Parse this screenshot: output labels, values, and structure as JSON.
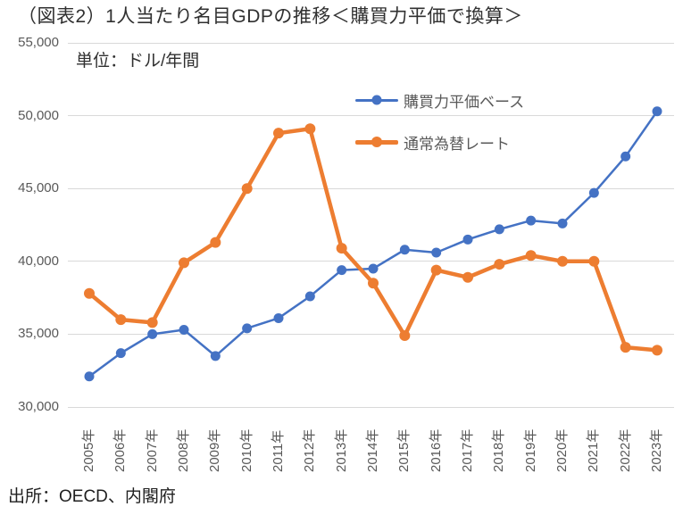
{
  "title": "（図表2）1人当たり名目GDPの推移＜購買力平価で換算＞",
  "subtitle": "単位：ドル/年間",
  "source": "出所：OECD、内閣府",
  "colors": {
    "ppp_series": "#4472C4",
    "fx_series": "#ED7D31",
    "gridline": "#D9D9D9",
    "axis_text": "#595959"
  },
  "chart_data": {
    "type": "line",
    "title": "（図表2）1人当たり名目GDPの推移＜購買力平価で換算＞",
    "subtitle": "単位：ドル/年間",
    "xlabel": "",
    "ylabel": "ドル/年間",
    "ylim": [
      30000,
      55000
    ],
    "grid": "horizontal",
    "legend_position": "top-right-inside",
    "categories": [
      "2005年",
      "2006年",
      "2007年",
      "2008年",
      "2009年",
      "2010年",
      "2011年",
      "2012年",
      "2013年",
      "2014年",
      "2015年",
      "2016年",
      "2017年",
      "2018年",
      "2019年",
      "2020年",
      "2021年",
      "2022年",
      "2023年"
    ],
    "y_ticks": {
      "values": [
        30000,
        35000,
        40000,
        45000,
        50000,
        55000
      ],
      "labels": [
        "30,000",
        "35,000",
        "40,000",
        "45,000",
        "50,000",
        "55,000"
      ]
    },
    "series": [
      {
        "name": "購買力平価ベース",
        "color": "#4472C4",
        "line_width": 2.5,
        "marker_radius": 5.5,
        "values": [
          32100,
          33700,
          35000,
          35300,
          33500,
          35400,
          36100,
          37600,
          39400,
          39500,
          40800,
          40600,
          41500,
          42200,
          42800,
          42600,
          44700,
          47200,
          50300
        ]
      },
      {
        "name": "通常為替レート",
        "color": "#ED7D31",
        "line_width": 4.5,
        "marker_radius": 6,
        "values": [
          37800,
          36000,
          35800,
          39900,
          41300,
          45000,
          48800,
          49100,
          40900,
          38500,
          34900,
          39400,
          38900,
          39800,
          40400,
          40000,
          40000,
          34100,
          33900
        ]
      }
    ]
  }
}
